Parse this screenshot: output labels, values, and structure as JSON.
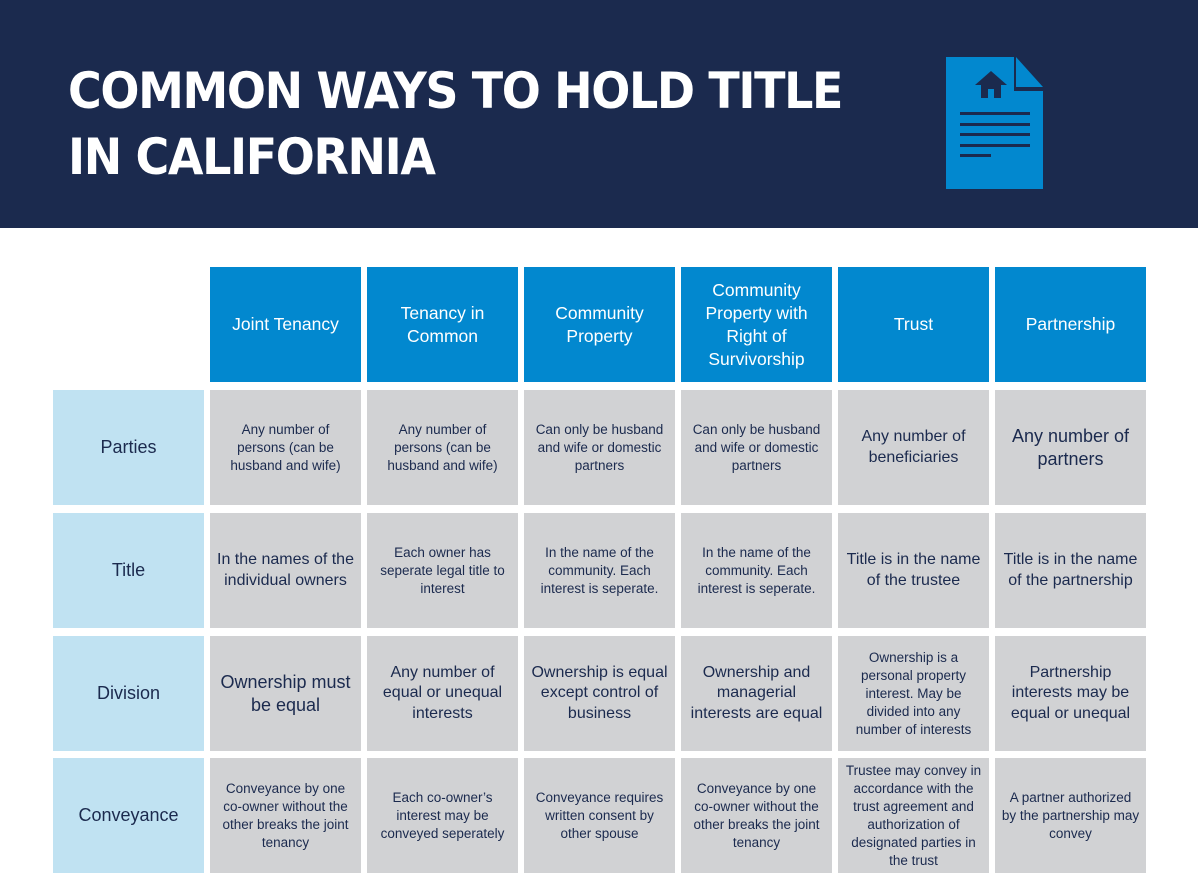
{
  "header": {
    "title_line1": "COMMON WAYS TO HOLD TITLE",
    "title_line2": "IN CALIFORNIA",
    "icon": "house-document-icon",
    "colors": {
      "navy": "#1b2a4e",
      "blue": "#0288cf",
      "light_blue": "#c0e2f2",
      "gray": "#d1d2d4"
    }
  },
  "table": {
    "columns": [
      "Joint Tenancy",
      "Tenancy in Common",
      "Community Property",
      "Community Property with Right of Survivorship",
      "Trust",
      "Partnership"
    ],
    "rows": [
      {
        "label": "Parties",
        "cells": [
          "Any number of persons (can be husband and wife)",
          "Any number of persons (can be husband and wife)",
          "Can only be husband and wife or domestic partners",
          "Can only be husband and wife or domestic partners",
          "Any number of beneficiaries",
          "Any number of partners"
        ]
      },
      {
        "label": "Title",
        "cells": [
          "In the names of the individual owners",
          "Each owner has seperate legal title to interest",
          "In the name of the community. Each interest is seperate.",
          "In the name of the community. Each interest is seperate.",
          "Title is in the name of the trustee",
          "Title is in the name of the partnership"
        ]
      },
      {
        "label": "Division",
        "cells": [
          "Ownership must be equal",
          "Any number of equal or unequal interests",
          "Ownership is equal except control of business",
          "Ownership and managerial interests are equal",
          "Ownership is a personal property interest. May be divided into any number of interests",
          "Partnership interests may be equal or unequal"
        ]
      },
      {
        "label": "Conveyance",
        "cells": [
          "Conveyance by one co-owner without the other breaks the joint tenancy",
          "Each co-owner’s interest may be conveyed seperately",
          "Conveyance requires written consent by other spouse",
          "Conveyance by one co-owner without the other breaks the joint tenancy",
          "Trustee may convey in accordance with the trust agreement and authorization of designated parties in the trust",
          "A partner authorized by the partnership may convey"
        ]
      }
    ]
  }
}
